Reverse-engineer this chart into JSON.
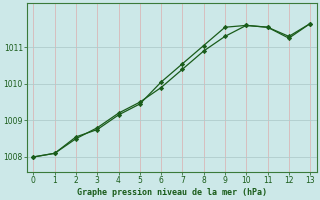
{
  "title": "Graphe pression niveau de la mer (hPa)",
  "background_color": "#cce8e8",
  "line_color": "#1a5c1a",
  "grid_color_v": "#c0d8d8",
  "grid_color_h": "#b8d0d0",
  "xlim": [
    -0.3,
    13.3
  ],
  "ylim": [
    1007.6,
    1012.2
  ],
  "yticks": [
    1008,
    1009,
    1010,
    1011
  ],
  "xticks": [
    0,
    1,
    2,
    3,
    4,
    5,
    6,
    7,
    8,
    9,
    10,
    11,
    12,
    13
  ],
  "series1_x": [
    0,
    1,
    2,
    3,
    4,
    5,
    6,
    7,
    8,
    9,
    10,
    11,
    12,
    13
  ],
  "series1_y": [
    1008.0,
    1008.1,
    1008.55,
    1008.75,
    1009.15,
    1009.45,
    1010.05,
    1010.55,
    1011.05,
    1011.55,
    1011.6,
    1011.55,
    1011.25,
    1011.65
  ],
  "series2_x": [
    0,
    1,
    2,
    3,
    4,
    5,
    6,
    7,
    8,
    9,
    10,
    11,
    12,
    13
  ],
  "series2_y": [
    1008.0,
    1008.1,
    1008.5,
    1008.8,
    1009.2,
    1009.5,
    1009.9,
    1010.4,
    1010.9,
    1011.3,
    1011.6,
    1011.55,
    1011.3,
    1011.65
  ],
  "figsize": [
    3.2,
    2.0
  ],
  "dpi": 100
}
